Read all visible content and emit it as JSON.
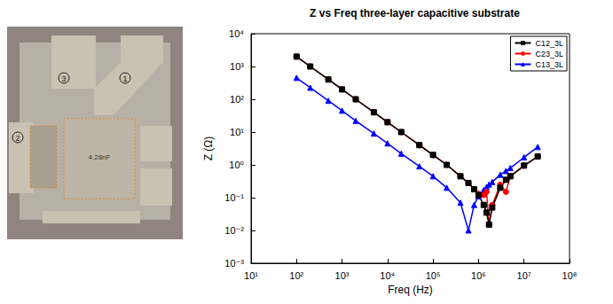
{
  "photo": {
    "pad_labels": [
      "3",
      "1",
      "2"
    ],
    "capacitor_label": "4.28nF"
  },
  "chart_data": {
    "type": "line",
    "title": "Z vs Freq three-layer capacitive substrate",
    "x_label": "Freq (Hz)",
    "y_label": "Z (Ω)",
    "log": true,
    "grid": false,
    "legend": "upper right",
    "marker": "filled",
    "x": [
      100,
      200,
      500,
      1000,
      2000,
      5000,
      10000,
      20000,
      50000,
      100000,
      200000,
      400000,
      600000,
      800000,
      1000000,
      1300000,
      1500000,
      1700000,
      2000000,
      3000000,
      4000000,
      5000000,
      10000000,
      20000000
    ],
    "series": [
      {
        "name": "C12_3L",
        "color": "#000000",
        "marker": "square",
        "values": [
          2000,
          1000,
          400,
          200,
          100,
          40,
          20,
          10,
          4,
          2,
          1,
          0.45,
          0.28,
          0.18,
          0.12,
          0.06,
          0.035,
          0.015,
          0.05,
          0.2,
          0.35,
          0.45,
          0.95,
          1.8
        ]
      },
      {
        "name": "C23_3L",
        "color": "#ff0000",
        "marker": "circle",
        "values": [
          2000,
          1000,
          400,
          200,
          100,
          40,
          20,
          10,
          4,
          2,
          1,
          0.45,
          0.28,
          0.18,
          0.13,
          0.12,
          0.15,
          0.015,
          0.06,
          0.25,
          0.15,
          0.45,
          0.95,
          1.8
        ]
      },
      {
        "name": "C13_3L",
        "color": "#0000ff",
        "marker": "triangle",
        "values": [
          450,
          225,
          90,
          45,
          22,
          9,
          4.5,
          2.2,
          0.9,
          0.45,
          0.2,
          0.07,
          0.01,
          0.06,
          0.11,
          0.17,
          0.21,
          0.25,
          0.3,
          0.5,
          0.65,
          0.8,
          1.7,
          3.5
        ]
      }
    ],
    "xlim": [
      10,
      100000000
    ],
    "xticks": [
      {
        "value": 10,
        "label": "10¹"
      },
      {
        "value": 100,
        "label": "10²"
      },
      {
        "value": 1000,
        "label": "10³"
      },
      {
        "value": 10000,
        "label": "10⁴"
      },
      {
        "value": 100000,
        "label": "10⁵"
      },
      {
        "value": 1000000,
        "label": "10⁶"
      },
      {
        "value": 10000000,
        "label": "10⁷"
      },
      {
        "value": 100000000,
        "label": "10⁸"
      }
    ],
    "ylim": [
      0.001,
      10000
    ],
    "yticks": [
      {
        "value": 0.001,
        "label": "10⁻³"
      },
      {
        "value": 0.01,
        "label": "10⁻²"
      },
      {
        "value": 0.1,
        "label": "10⁻¹"
      },
      {
        "value": 1,
        "label": "10⁰"
      },
      {
        "value": 10,
        "label": "10¹"
      },
      {
        "value": 100,
        "label": "10²"
      },
      {
        "value": 1000,
        "label": "10³"
      },
      {
        "value": 10000,
        "label": "10⁴"
      }
    ]
  }
}
